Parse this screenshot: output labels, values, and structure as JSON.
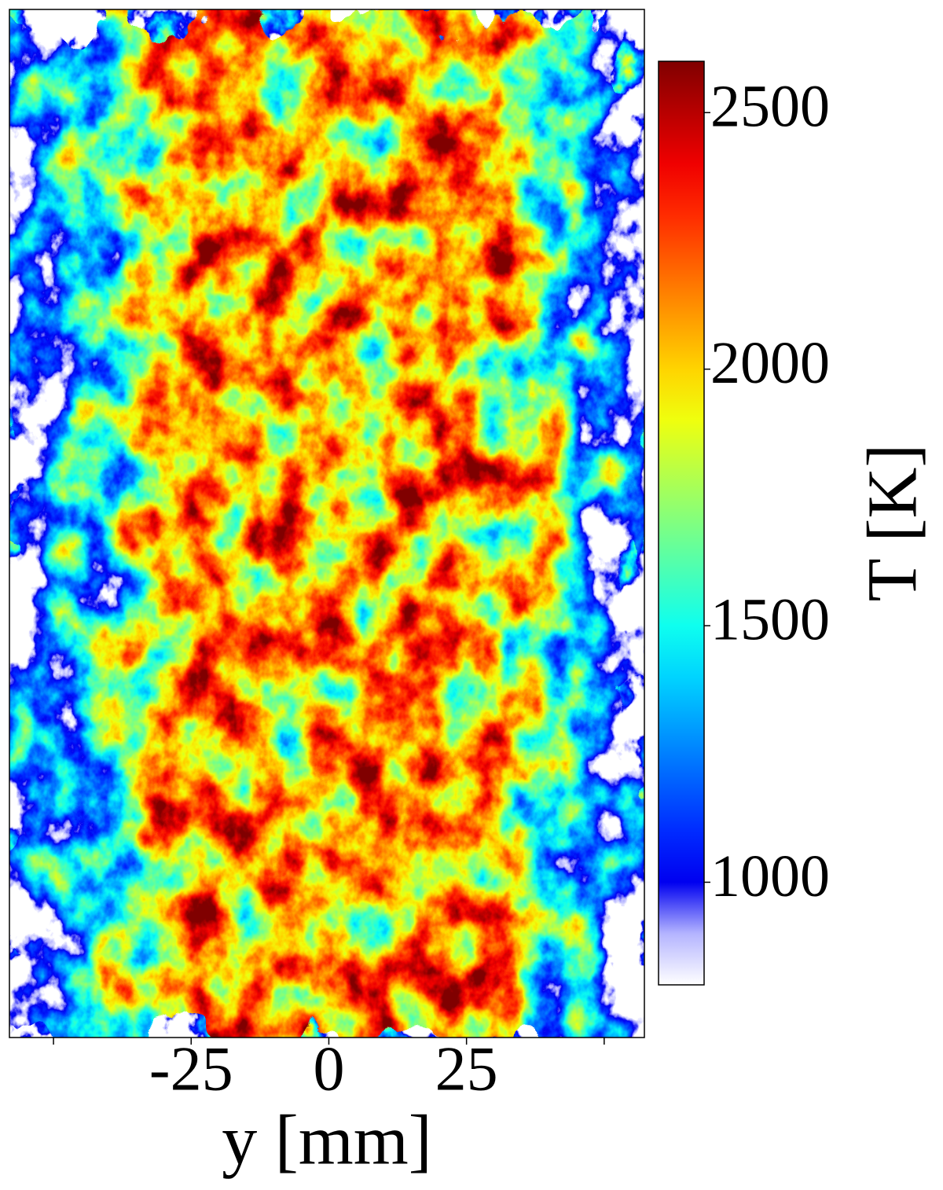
{
  "chart_data": {
    "type": "heatmap",
    "xlabel": "y [mm]",
    "xlim": [
      -58,
      57.3
    ],
    "xticks": [
      {
        "value": -50,
        "label": null
      },
      -25,
      0,
      25,
      {
        "value": 50,
        "label": null
      }
    ],
    "colorbar": {
      "label": "T [K]",
      "lim": [
        800,
        2600
      ],
      "ticks": [
        1000,
        1500,
        2000,
        2500
      ],
      "colors": [
        "#ffffff",
        "#b4b4ff",
        "#0000f0",
        "#002bff",
        "#0063ff",
        "#009cff",
        "#00d4ff",
        "#0effef",
        "#47ffb8",
        "#80ff80",
        "#b8ff47",
        "#efff0e",
        "#ffd400",
        "#ff9c00",
        "#ff6300",
        "#ff2b00",
        "#f00000",
        "#b80000",
        "#800000"
      ]
    }
  }
}
